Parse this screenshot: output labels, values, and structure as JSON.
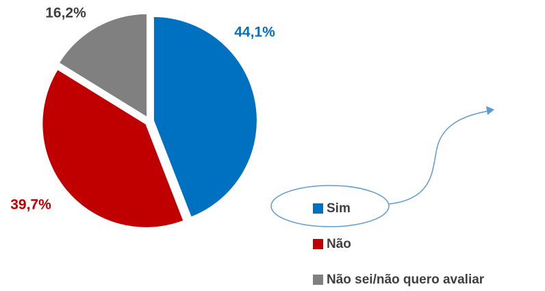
{
  "chart_data": {
    "type": "pie",
    "categories": [
      "Sim",
      "Não",
      "Não sei/não quero avaliar"
    ],
    "values": [
      44.1,
      39.7,
      16.2
    ],
    "value_labels": [
      "44,1%",
      "39,7%",
      "16,2%"
    ],
    "colors": [
      "#0070c0",
      "#c00000",
      "#808080"
    ],
    "label_colors": [
      "#0070c0",
      "#c00000",
      "#404040"
    ]
  }
}
